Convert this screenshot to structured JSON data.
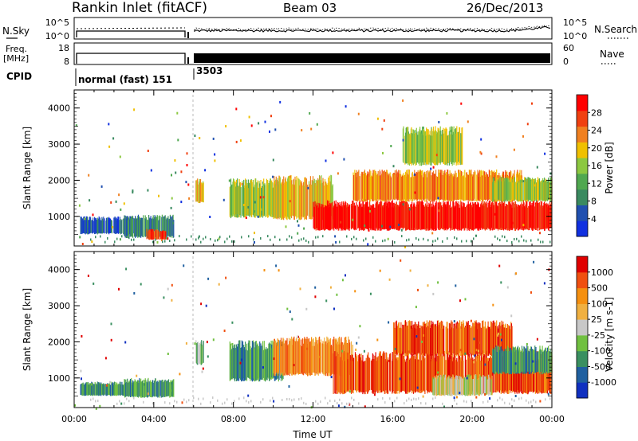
{
  "header": {
    "station": "Rankin Inlet (fitACF)",
    "beam": "Beam 03",
    "date": "26/Dec/2013"
  },
  "noise_panel": {
    "left_label": "N.Sky",
    "left_ticks": [
      "10^5",
      "10^0"
    ],
    "right_ticks": [
      "10^5",
      "10^0"
    ],
    "right_label": "N.Search"
  },
  "freq_panel": {
    "left_label_1": "Freq.",
    "left_label_2": "[MHz]",
    "left_ticks": [
      "18",
      "8"
    ],
    "right_ticks": [
      "60",
      "0"
    ],
    "right_label": "Nave"
  },
  "cpid": {
    "label": "CPID",
    "segments": [
      {
        "name": "normal (fast) 151",
        "start_hour": 0.0,
        "end_hour": 6.0
      },
      {
        "name": "3503",
        "start_hour": 6.0,
        "end_hour": 24.0
      }
    ]
  },
  "colors": {
    "power": [
      "#1030e0",
      "#2050b0",
      "#3a8a60",
      "#50a850",
      "#8cc840",
      "#f0c000",
      "#f08020",
      "#f04010",
      "#ff0000"
    ],
    "velocity": [
      "#e00000",
      "#f05010",
      "#f59010",
      "#f0b040",
      "#c8c8c8",
      "#70c040",
      "#3a9060",
      "#2060a0",
      "#1030c0"
    ]
  },
  "chart_data": [
    {
      "type": "heatmap",
      "name": "power",
      "title": "",
      "xlabel": "",
      "ylabel": "Slant Range [km]",
      "xlim": [
        0,
        24
      ],
      "ylim": [
        180,
        4500
      ],
      "x_tick_labels": [
        "00:00",
        "04:00",
        "08:00",
        "12:00",
        "16:00",
        "20:00",
        "00:00"
      ],
      "y_tick_labels": [
        "1000",
        "2000",
        "3000",
        "4000"
      ],
      "colorbar": {
        "label": "Power [dB]",
        "ticks": [
          "4",
          "8",
          "12",
          "16",
          "20",
          "24",
          "28"
        ]
      },
      "regions": [
        {
          "t0": 0.3,
          "t1": 3.0,
          "r0": 500,
          "r1": 1000,
          "level": 1
        },
        {
          "t0": 2.5,
          "t1": 5.0,
          "r0": 400,
          "r1": 1050,
          "level": 2
        },
        {
          "t0": 3.6,
          "t1": 4.6,
          "r0": 350,
          "r1": 650,
          "level": 7
        },
        {
          "t0": 6.1,
          "t1": 6.5,
          "r0": 1350,
          "r1": 2050,
          "level": 5
        },
        {
          "t0": 7.8,
          "t1": 10.5,
          "r0": 950,
          "r1": 2050,
          "level": 4
        },
        {
          "t0": 10.0,
          "t1": 13.0,
          "r0": 900,
          "r1": 2150,
          "level": 5
        },
        {
          "t0": 12.0,
          "t1": 24.0,
          "r0": 600,
          "r1": 1450,
          "level": 8
        },
        {
          "t0": 14.0,
          "t1": 22.5,
          "r0": 1400,
          "r1": 2300,
          "level": 6
        },
        {
          "t0": 16.5,
          "t1": 19.5,
          "r0": 2400,
          "r1": 3500,
          "level": 4
        },
        {
          "t0": 21.0,
          "t1": 24.0,
          "r0": 1400,
          "r1": 2100,
          "level": 4
        }
      ]
    },
    {
      "type": "heatmap",
      "name": "velocity",
      "title": "",
      "xlabel": "Time UT",
      "ylabel": "Slant Range [km]",
      "xlim": [
        0,
        24
      ],
      "ylim": [
        180,
        4500
      ],
      "x_tick_labels": [
        "00:00",
        "04:00",
        "08:00",
        "12:00",
        "16:00",
        "20:00",
        "00:00"
      ],
      "y_tick_labels": [
        "1000",
        "2000",
        "3000",
        "4000"
      ],
      "colorbar": {
        "label": "Velocity [m s-1]",
        "ticks": [
          "1000",
          "500",
          "100",
          "25",
          "-25",
          "-100",
          "-500",
          "-1000"
        ]
      },
      "regions": [
        {
          "t0": 0.3,
          "t1": 3.0,
          "r0": 500,
          "r1": 900,
          "level": 6
        },
        {
          "t0": 2.5,
          "t1": 5.0,
          "r0": 450,
          "r1": 1000,
          "level": 6
        },
        {
          "t0": 6.1,
          "t1": 6.5,
          "r0": 1350,
          "r1": 2050,
          "level": 5
        },
        {
          "t0": 7.8,
          "t1": 10.5,
          "r0": 900,
          "r1": 2050,
          "level": 6
        },
        {
          "t0": 10.0,
          "t1": 14.0,
          "r0": 1050,
          "r1": 2150,
          "level": 2
        },
        {
          "t0": 13.0,
          "t1": 24.0,
          "r0": 550,
          "r1": 1750,
          "level": 1
        },
        {
          "t0": 16.0,
          "t1": 22.0,
          "r0": 1600,
          "r1": 2600,
          "level": 1
        },
        {
          "t0": 18.0,
          "t1": 21.0,
          "r0": 500,
          "r1": 1100,
          "level": 4
        },
        {
          "t0": 21.0,
          "t1": 24.0,
          "r0": 1100,
          "r1": 1900,
          "level": 6
        }
      ]
    }
  ]
}
